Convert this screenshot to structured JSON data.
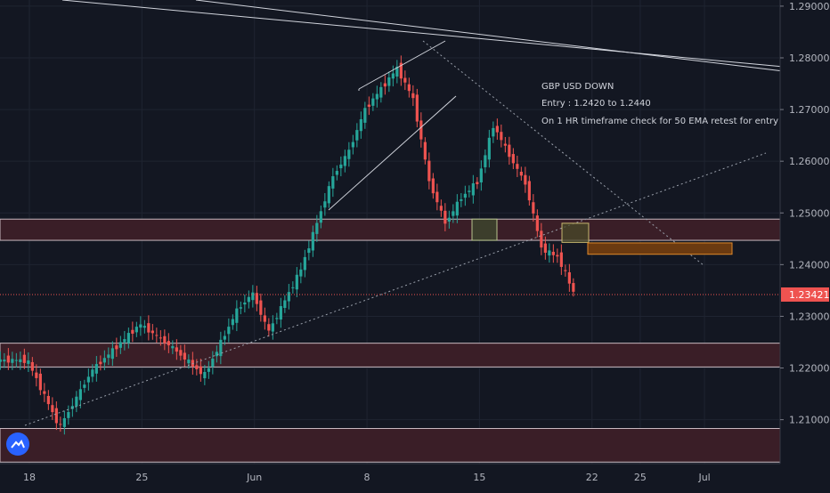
{
  "chart_data": {
    "type": "candlestick",
    "title": "",
    "symbol_pair": "GBP/USD",
    "x_tick_labels": [
      "18",
      "25",
      "Jun",
      "8",
      "15",
      "22",
      "25",
      "Jul"
    ],
    "y_tick_labels": [
      "1.29000",
      "1.28000",
      "1.27000",
      "1.26000",
      "1.25000",
      "1.24000",
      "1.23000",
      "1.22000",
      "1.21000"
    ],
    "ylim": [
      1.2015,
      1.2905
    ],
    "last_price": "1.23421",
    "last_price_value": 1.23421,
    "annotations": [
      "GBP USD DOWN",
      "Entry : 1.2420 to 1.2440",
      "On 1 HR timeframe check for 50 EMA retest for entry"
    ],
    "zones": [
      {
        "low": 1.2447,
        "high": 1.2488
      },
      {
        "low": 1.2202,
        "high": 1.2248
      },
      {
        "low": 1.2018,
        "high": 1.2083
      }
    ],
    "candle_pivots": [
      {
        "date": "2020-05-18",
        "price": 1.2215
      },
      {
        "date": "2020-05-20",
        "price": 1.2085
      },
      {
        "date": "2020-05-22",
        "price": 1.2195
      },
      {
        "date": "2020-05-25",
        "price": 1.2285
      },
      {
        "date": "2020-05-27",
        "price": 1.224
      },
      {
        "date": "2020-05-29",
        "price": 1.2185
      },
      {
        "date": "2020-05-31",
        "price": 1.231
      },
      {
        "date": "2020-06-01",
        "price": 1.2345
      },
      {
        "date": "2020-06-02",
        "price": 1.227
      },
      {
        "date": "2020-06-03",
        "price": 1.233
      },
      {
        "date": "2020-06-04",
        "price": 1.239
      },
      {
        "date": "2020-06-05",
        "price": 1.248
      },
      {
        "date": "2020-06-06",
        "price": 1.257
      },
      {
        "date": "2020-06-07",
        "price": 1.262
      },
      {
        "date": "2020-06-08",
        "price": 1.27
      },
      {
        "date": "2020-06-09",
        "price": 1.274
      },
      {
        "date": "2020-06-10",
        "price": 1.278
      },
      {
        "date": "2020-06-11",
        "price": 1.272
      },
      {
        "date": "2020-06-12",
        "price": 1.256
      },
      {
        "date": "2020-06-13",
        "price": 1.248
      },
      {
        "date": "2020-06-14",
        "price": 1.253
      },
      {
        "date": "2020-06-15",
        "price": 1.256
      },
      {
        "date": "2020-06-16",
        "price": 1.267
      },
      {
        "date": "2020-06-17",
        "price": 1.261
      },
      {
        "date": "2020-06-18",
        "price": 1.2555
      },
      {
        "date": "2020-06-19",
        "price": 1.243
      },
      {
        "date": "2020-06-20",
        "price": 1.2415
      },
      {
        "date": "2020-06-21",
        "price": 1.2345
      }
    ],
    "colors": {
      "background": "#131722",
      "up": "#26a69a",
      "down": "#ef5350",
      "zone_fill": "#3a1e27",
      "zone_border": "#c9b9c0",
      "entry_zone": "#6b3a10",
      "entry_border": "#e08a2a",
      "price_label": "#ef5350",
      "grid": "#1f2431"
    }
  }
}
